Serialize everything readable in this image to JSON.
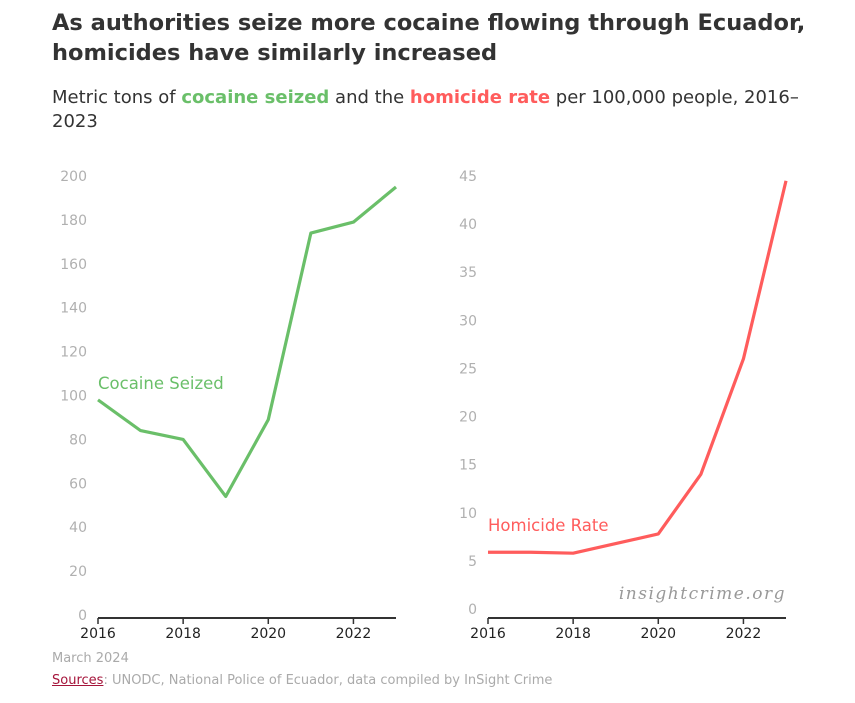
{
  "title": "As authorities seize more cocaine flowing through Ecuador, homicides have similarly increased",
  "subtitle": {
    "pre": "Metric tons of ",
    "cocaine": "cocaine seized",
    "mid": " and the ",
    "homicide": "homicide rate",
    "post": " per 100,000 people, 2016–2023"
  },
  "footer": {
    "date": "March 2024",
    "sources_link": "Sources",
    "sources_text": ": UNODC, National Police of Ecuador, data compiled by InSight Crime"
  },
  "watermark": "insightcrime.org",
  "chart_data": [
    {
      "type": "line",
      "x": [
        2016,
        2017,
        2018,
        2019,
        2020,
        2021,
        2022,
        2023
      ],
      "series": [
        {
          "name": "Cocaine Seized",
          "values": [
            98,
            84,
            80,
            54,
            89,
            174,
            179,
            195
          ],
          "color": "#6abf69"
        }
      ],
      "xticks": [
        "2016",
        "2018",
        "2020",
        "2022"
      ],
      "yticks": [
        "0",
        "20",
        "40",
        "60",
        "80",
        "100",
        "120",
        "140",
        "160",
        "180",
        "200"
      ],
      "ylim": [
        0,
        200
      ],
      "grid": false
    },
    {
      "type": "line",
      "x": [
        2016,
        2017,
        2018,
        2019,
        2020,
        2021,
        2022,
        2023
      ],
      "series": [
        {
          "name": "Homicide Rate",
          "values": [
            5.9,
            5.9,
            5.8,
            6.8,
            7.8,
            14.0,
            26.0,
            44.5
          ],
          "color": "#ff5c5c"
        }
      ],
      "xticks": [
        "2016",
        "2018",
        "2020",
        "2022"
      ],
      "yticks": [
        "0",
        "5",
        "10",
        "15",
        "20",
        "25",
        "30",
        "35",
        "40",
        "45"
      ],
      "ylim": [
        0,
        45
      ],
      "grid": false
    }
  ]
}
